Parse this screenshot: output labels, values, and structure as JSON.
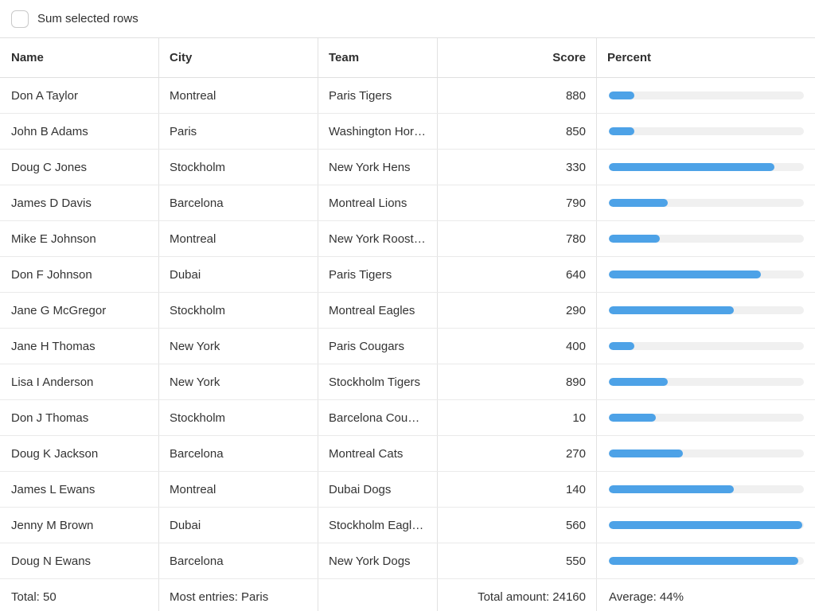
{
  "toolbar": {
    "checkbox_label": "Sum selected rows",
    "checkbox_checked": false
  },
  "table": {
    "columns": {
      "name": "Name",
      "city": "City",
      "team": "Team",
      "score": "Score",
      "percent": "Percent"
    },
    "rows": [
      {
        "name": "Don A Taylor",
        "city": "Montreal",
        "team": "Paris Tigers",
        "score": "880",
        "percent": 13
      },
      {
        "name": "John B Adams",
        "city": "Paris",
        "team": "Washington Hor…",
        "score": "850",
        "percent": 13
      },
      {
        "name": "Doug C Jones",
        "city": "Stockholm",
        "team": "New York Hens",
        "score": "330",
        "percent": 85
      },
      {
        "name": "James D Davis",
        "city": "Barcelona",
        "team": "Montreal Lions",
        "score": "790",
        "percent": 30
      },
      {
        "name": "Mike E Johnson",
        "city": "Montreal",
        "team": "New York Roost…",
        "score": "780",
        "percent": 26
      },
      {
        "name": "Don F Johnson",
        "city": "Dubai",
        "team": "Paris Tigers",
        "score": "640",
        "percent": 78
      },
      {
        "name": "Jane G McGregor",
        "city": "Stockholm",
        "team": "Montreal Eagles",
        "score": "290",
        "percent": 64
      },
      {
        "name": "Jane H Thomas",
        "city": "New York",
        "team": "Paris Cougars",
        "score": "400",
        "percent": 13
      },
      {
        "name": "Lisa I Anderson",
        "city": "New York",
        "team": "Stockholm Tigers",
        "score": "890",
        "percent": 30
      },
      {
        "name": "Don J Thomas",
        "city": "Stockholm",
        "team": "Barcelona Cou…",
        "score": "10",
        "percent": 24
      },
      {
        "name": "Doug K Jackson",
        "city": "Barcelona",
        "team": "Montreal Cats",
        "score": "270",
        "percent": 38
      },
      {
        "name": "James L Ewans",
        "city": "Montreal",
        "team": "Dubai Dogs",
        "score": "140",
        "percent": 64
      },
      {
        "name": "Jenny M Brown",
        "city": "Dubai",
        "team": "Stockholm Eagl…",
        "score": "560",
        "percent": 99
      },
      {
        "name": "Doug N Ewans",
        "city": "Barcelona",
        "team": "New York Dogs",
        "score": "550",
        "percent": 97
      }
    ],
    "footer": {
      "total": "Total: 50",
      "most_entries": "Most entries: Paris",
      "total_amount": "Total amount: 24160",
      "average": "Average: 44%"
    }
  },
  "colors": {
    "bar_fill": "#4da2e7",
    "bar_track": "#f0f0f0",
    "border": "#e2e2e2"
  }
}
